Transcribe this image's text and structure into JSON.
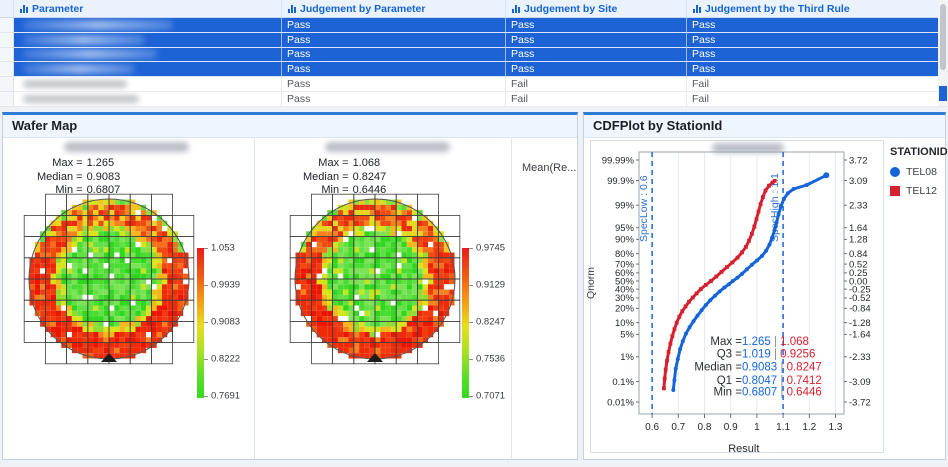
{
  "table": {
    "columns": [
      "Parameter",
      "Judgement by Parameter",
      "Judgement by Site",
      "Judgement by the Third Rule"
    ],
    "rows": [
      {
        "selected": true,
        "parameter_redacted": true,
        "values": [
          "Pass",
          "Pass",
          "Pass"
        ]
      },
      {
        "selected": true,
        "parameter_redacted": true,
        "values": [
          "Pass",
          "Pass",
          "Pass"
        ]
      },
      {
        "selected": true,
        "parameter_redacted": true,
        "values": [
          "Pass",
          "Pass",
          "Pass"
        ]
      },
      {
        "selected": true,
        "parameter_redacted": true,
        "values": [
          "Pass",
          "Pass",
          "Pass"
        ]
      },
      {
        "selected": false,
        "parameter_redacted": true,
        "values": [
          "Pass",
          "Fail",
          "Fail"
        ]
      },
      {
        "selected": false,
        "parameter_redacted": true,
        "values": [
          "Pass",
          "Fail",
          "Fail"
        ]
      }
    ]
  },
  "wafer_panel": {
    "title": "Wafer Map",
    "stat_labels": [
      "Max =",
      "Median =",
      "Min ="
    ],
    "maps": [
      {
        "max": "1.265",
        "median": "0.9083",
        "min": "0.6807",
        "scale_ticks": [
          "1.053",
          "0.9939",
          "0.9083",
          "0.8222",
          "0.7691"
        ],
        "title_redacted": true
      },
      {
        "max": "1.068",
        "median": "0.8247",
        "min": "0.6446",
        "scale_ticks": [
          "0.9745",
          "0.9129",
          "0.8247",
          "0.7536",
          "0.7071"
        ],
        "title_redacted": true
      }
    ],
    "truncated_label": "Mean(Re..."
  },
  "cdf_panel": {
    "title": "CDFPlot by StationId",
    "title_redacted_above_plot": true,
    "legend": {
      "title": "STATIONID",
      "items": [
        {
          "label": "TEL08",
          "color": "#1565d8",
          "shape": "circle"
        },
        {
          "label": "TEL12",
          "color": "#d6202f",
          "shape": "square"
        }
      ]
    }
  },
  "chart_data": [
    {
      "type": "heatmap",
      "name": "wafer-map-left",
      "stats": {
        "max": 1.265,
        "median": 0.9083,
        "min": 0.6807
      },
      "color_scale_ticks": [
        1.053,
        0.9939,
        0.9083,
        0.8222,
        0.7691
      ],
      "color_scale": {
        "top": "#e81c1c",
        "middle": "#e8de1c",
        "bottom": "#35da1f"
      },
      "pattern": "circular wafer die map: green center, yellow transition, red-orange edge ring, scattered white dies, notch at bottom"
    },
    {
      "type": "heatmap",
      "name": "wafer-map-right",
      "stats": {
        "max": 1.068,
        "median": 0.8247,
        "min": 0.6446
      },
      "color_scale_ticks": [
        0.9745,
        0.9129,
        0.8247,
        0.7536,
        0.7071
      ],
      "color_scale": {
        "top": "#e81c1c",
        "middle": "#e8de1c",
        "bottom": "#35da1f"
      },
      "pattern": "circular wafer die map: green center, yellow transition, red-orange edge ring, scattered white dies, notch at bottom"
    },
    {
      "type": "line",
      "name": "cdf-by-stationid",
      "title": "CDFPlot by StationId",
      "xlabel": "Result",
      "ylabel": "Qnorm",
      "x_ticks": [
        "0.6",
        "0.7",
        "0.8",
        "0.9",
        "1",
        "1.1",
        "1.2",
        "1.3"
      ],
      "xlim": [
        0.55,
        1.34
      ],
      "y_ticks_percent": [
        "99.99%",
        "99.9%",
        "99%",
        "95%",
        "90%",
        "80%",
        "70%",
        "60%",
        "50%",
        "40%",
        "30%",
        "20%",
        "10%",
        "5%",
        "1%",
        "0.1%",
        "0.01%"
      ],
      "y_ticks_qnorm": [
        "3.72",
        "3.09",
        "2.33",
        "1.64",
        "1.28",
        "0.84",
        "0.52",
        "0.25",
        "0.00",
        "-0.25",
        "-0.52",
        "-0.84",
        "-1.28",
        "-1.64",
        "-2.33",
        "-3.09",
        "-3.72"
      ],
      "spec_low": {
        "label": "SpecLow : 0.6",
        "value": 0.6
      },
      "spec_high": {
        "label": "SpecHigh : 1.1",
        "value": 1.1
      },
      "series": [
        {
          "name": "TEL08",
          "color": "#1565d8",
          "marker": "circle",
          "quantiles": {
            "min": 0.6807,
            "q1": 0.8047,
            "median": 0.9083,
            "q3": 1.019,
            "max": 1.265
          },
          "points": [
            [
              0.681,
              -3.35
            ],
            [
              0.685,
              -3.05
            ],
            [
              0.69,
              -2.7
            ],
            [
              0.698,
              -2.4
            ],
            [
              0.707,
              -2.1
            ],
            [
              0.717,
              -1.85
            ],
            [
              0.729,
              -1.62
            ],
            [
              0.743,
              -1.42
            ],
            [
              0.758,
              -1.24
            ],
            [
              0.773,
              -1.07
            ],
            [
              0.789,
              -0.9
            ],
            [
              0.805,
              -0.74
            ],
            [
              0.822,
              -0.59
            ],
            [
              0.84,
              -0.45
            ],
            [
              0.858,
              -0.32
            ],
            [
              0.876,
              -0.2
            ],
            [
              0.893,
              -0.1
            ],
            [
              0.908,
              0
            ],
            [
              0.925,
              0.1
            ],
            [
              0.943,
              0.22
            ],
            [
              0.962,
              0.36
            ],
            [
              0.981,
              0.5
            ],
            [
              1.0,
              0.63
            ],
            [
              1.019,
              0.77
            ],
            [
              1.035,
              0.93
            ],
            [
              1.048,
              1.12
            ],
            [
              1.058,
              1.33
            ],
            [
              1.067,
              1.56
            ],
            [
              1.075,
              1.8
            ],
            [
              1.083,
              2.05
            ],
            [
              1.092,
              2.3
            ],
            [
              1.103,
              2.52
            ],
            [
              1.118,
              2.7
            ],
            [
              1.14,
              2.83
            ],
            [
              1.19,
              2.95
            ],
            [
              1.265,
              3.25
            ]
          ]
        },
        {
          "name": "TEL12",
          "color": "#d6202f",
          "marker": "square",
          "quantiles": {
            "min": 0.6446,
            "q1": 0.7412,
            "median": 0.8247,
            "q3": 0.9256,
            "max": 1.068
          },
          "points": [
            [
              0.645,
              -3.3
            ],
            [
              0.648,
              -3.0
            ],
            [
              0.652,
              -2.72
            ],
            [
              0.657,
              -2.45
            ],
            [
              0.663,
              -2.18
            ],
            [
              0.67,
              -1.93
            ],
            [
              0.677,
              -1.7
            ],
            [
              0.685,
              -1.48
            ],
            [
              0.694,
              -1.28
            ],
            [
              0.704,
              -1.1
            ],
            [
              0.715,
              -0.93
            ],
            [
              0.728,
              -0.78
            ],
            [
              0.741,
              -0.64
            ],
            [
              0.755,
              -0.51
            ],
            [
              0.77,
              -0.38
            ],
            [
              0.786,
              -0.25
            ],
            [
              0.805,
              -0.12
            ],
            [
              0.825,
              0
            ],
            [
              0.845,
              0.14
            ],
            [
              0.865,
              0.28
            ],
            [
              0.886,
              0.43
            ],
            [
              0.906,
              0.57
            ],
            [
              0.926,
              0.72
            ],
            [
              0.943,
              0.88
            ],
            [
              0.958,
              1.05
            ],
            [
              0.97,
              1.24
            ],
            [
              0.981,
              1.45
            ],
            [
              0.99,
              1.67
            ],
            [
              0.998,
              1.9
            ],
            [
              1.006,
              2.13
            ],
            [
              1.014,
              2.36
            ],
            [
              1.023,
              2.58
            ],
            [
              1.033,
              2.78
            ],
            [
              1.046,
              2.93
            ],
            [
              1.06,
              3.03
            ],
            [
              1.068,
              3.08
            ]
          ]
        }
      ],
      "stats_lines": [
        {
          "label": "Max",
          "tel08": "1.265",
          "tel12": "1.068"
        },
        {
          "label": "Q3",
          "tel08": "1.019",
          "tel12": "0.9256"
        },
        {
          "label": "Median",
          "tel08": "0.9083",
          "tel12": "0.8247"
        },
        {
          "label": "Q1",
          "tel08": "0.8047",
          "tel12": "0.7412"
        },
        {
          "label": "Min",
          "tel08": "0.6807",
          "tel12": "0.6446"
        }
      ],
      "legend_position": "right"
    }
  ]
}
